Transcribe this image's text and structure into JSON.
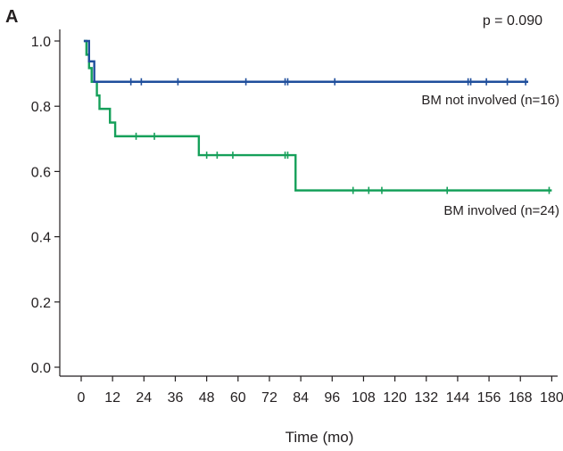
{
  "chart_data": {
    "type": "line",
    "panel_label": "A",
    "title": "",
    "xlabel": "Time (mo)",
    "ylabel": "",
    "xlim": [
      -3,
      183
    ],
    "ylim": [
      -0.04,
      1.04
    ],
    "x_ticks": [
      0,
      12,
      24,
      36,
      48,
      60,
      72,
      84,
      96,
      108,
      120,
      132,
      144,
      156,
      168,
      180
    ],
    "y_ticks": [
      0.0,
      0.2,
      0.4,
      0.6,
      0.8,
      1.0
    ],
    "y_tick_labels": [
      "0.0",
      "0.2",
      "0.4",
      "0.6",
      "0.8",
      "1.0"
    ],
    "grid": false,
    "annotation": "p = 0.090",
    "series": [
      {
        "name": "BM not involved (n=16)",
        "color": "#1f4e9c",
        "steps": [
          [
            1,
            1.0
          ],
          [
            3,
            0.9375
          ],
          [
            5,
            0.875
          ],
          [
            171,
            0.875
          ]
        ],
        "censor_x": [
          19,
          23,
          37,
          63,
          78,
          79,
          97,
          148,
          149,
          155,
          163,
          170
        ]
      },
      {
        "name": "BM involved (n=24)",
        "color": "#16a05a",
        "steps": [
          [
            1,
            1.0
          ],
          [
            2,
            0.958
          ],
          [
            3,
            0.917
          ],
          [
            4,
            0.875
          ],
          [
            6,
            0.833
          ],
          [
            7,
            0.792
          ],
          [
            11,
            0.75
          ],
          [
            13,
            0.708
          ],
          [
            45,
            0.65
          ],
          [
            80,
            0.65
          ],
          [
            82,
            0.542
          ],
          [
            180,
            0.542
          ]
        ],
        "censor_x": [
          21,
          28,
          48,
          52,
          58,
          78,
          79,
          104,
          110,
          115,
          140,
          179
        ]
      }
    ]
  }
}
